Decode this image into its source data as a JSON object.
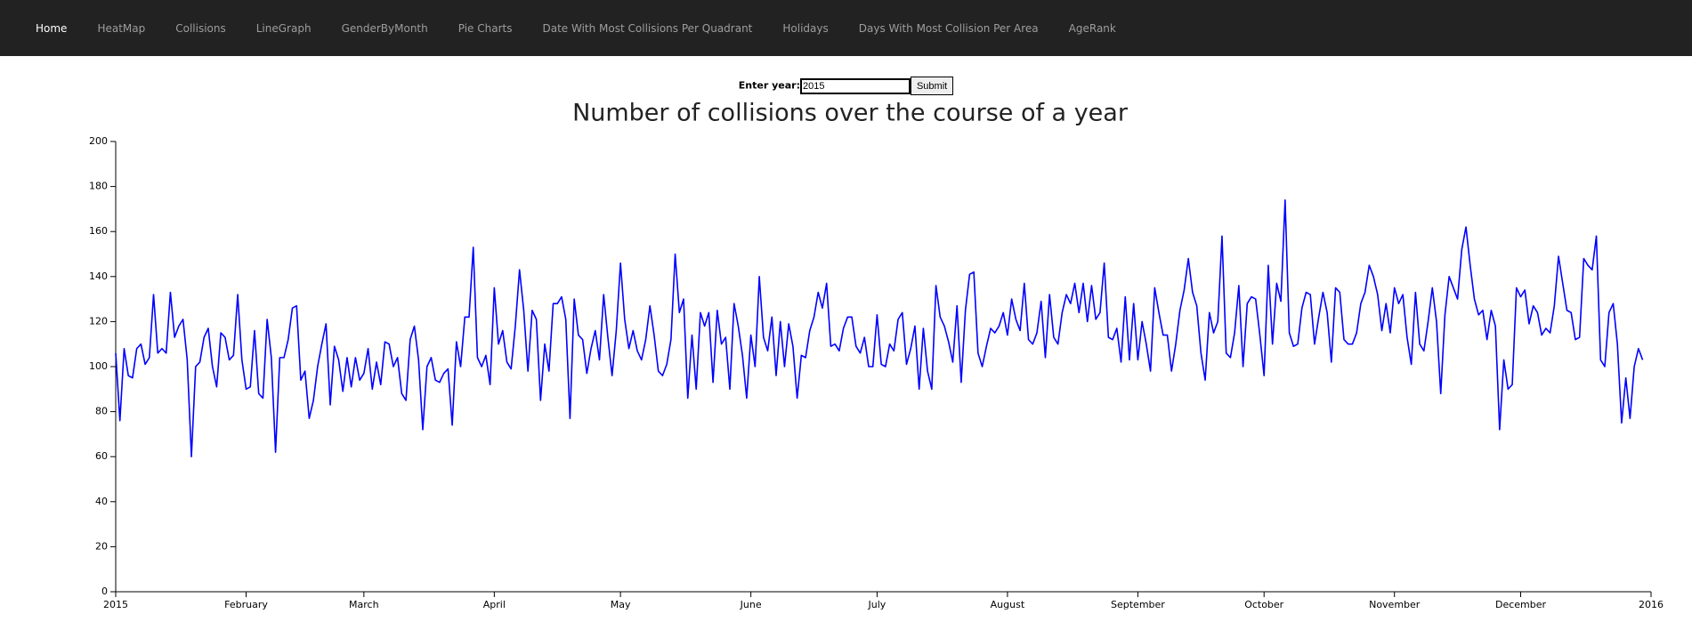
{
  "nav": {
    "items": [
      "Home",
      "HeatMap",
      "Collisions",
      "LineGraph",
      "GenderByMonth",
      "Pie Charts",
      "Date With Most Collisions Per Quadrant",
      "Holidays",
      "Days With Most Collision Per Area",
      "AgeRank"
    ]
  },
  "form": {
    "label": "Enter year:",
    "input": "2015",
    "button": "Submit"
  },
  "chart_data": {
    "type": "line",
    "title": "Number of collisions over the course of a year",
    "color": "#0000ff",
    "xlim": [
      0,
      365
    ],
    "xticks": [
      {
        "value": 0,
        "label": "2015"
      },
      {
        "value": 31,
        "label": "February"
      },
      {
        "value": 59,
        "label": "March"
      },
      {
        "value": 90,
        "label": "April"
      },
      {
        "value": 120,
        "label": "May"
      },
      {
        "value": 151,
        "label": "June"
      },
      {
        "value": 181,
        "label": "July"
      },
      {
        "value": 212,
        "label": "August"
      },
      {
        "value": 243,
        "label": "September"
      },
      {
        "value": 273,
        "label": "October"
      },
      {
        "value": 304,
        "label": "November"
      },
      {
        "value": 334,
        "label": "December"
      },
      {
        "value": 365,
        "label": "2016"
      }
    ],
    "ylim": [
      0,
      200
    ],
    "yticks": [
      0,
      20,
      40,
      60,
      80,
      100,
      120,
      140,
      160,
      180,
      200
    ],
    "x": [
      0,
      1,
      2,
      3,
      4,
      5,
      6,
      7,
      8,
      9,
      10,
      11,
      12,
      13,
      14,
      15,
      16,
      17,
      18,
      19,
      20,
      21,
      22,
      23,
      24,
      25,
      26,
      27,
      28,
      29,
      30,
      31,
      32,
      33,
      34,
      35,
      36,
      37,
      38,
      39,
      40,
      41,
      42,
      43,
      44,
      45,
      46,
      47,
      48,
      49,
      50,
      51,
      52,
      53,
      54,
      55,
      56,
      57,
      58,
      59,
      60,
      61,
      62,
      63,
      64,
      65,
      66,
      67,
      68,
      69,
      70,
      71,
      72,
      73,
      74,
      75,
      76,
      77,
      78,
      79,
      80,
      81,
      82,
      83,
      84,
      85,
      86,
      87,
      88,
      89,
      90,
      91,
      92,
      93,
      94,
      95,
      96,
      97,
      98,
      99,
      100,
      101,
      102,
      103,
      104,
      105,
      106,
      107,
      108,
      109,
      110,
      111,
      112,
      113,
      114,
      115,
      116,
      117,
      118,
      119,
      120,
      121,
      122,
      123,
      124,
      125,
      126,
      127,
      128,
      129,
      130,
      131,
      132,
      133,
      134,
      135,
      136,
      137,
      138,
      139,
      140,
      141,
      142,
      143,
      144,
      145,
      146,
      147,
      148,
      149,
      150,
      151,
      152,
      153,
      154,
      155,
      156,
      157,
      158,
      159,
      160,
      161,
      162,
      163,
      164,
      165,
      166,
      167,
      168,
      169,
      170,
      171,
      172,
      173,
      174,
      175,
      176,
      177,
      178,
      179,
      180,
      181,
      182,
      183,
      184,
      185,
      186,
      187,
      188,
      189,
      190,
      191,
      192,
      193,
      194,
      195,
      196,
      197,
      198,
      199,
      200,
      201,
      202,
      203,
      204,
      205,
      206,
      207,
      208,
      209,
      210,
      211,
      212,
      213,
      214,
      215,
      216,
      217,
      218,
      219,
      220,
      221,
      222,
      223,
      224,
      225,
      226,
      227,
      228,
      229,
      230,
      231,
      232,
      233,
      234,
      235,
      236,
      237,
      238,
      239,
      240,
      241,
      242,
      243,
      244,
      245,
      246,
      247,
      248,
      249,
      250,
      251,
      252,
      253,
      254,
      255,
      256,
      257,
      258,
      259,
      260,
      261,
      262,
      263,
      264,
      265,
      266,
      267,
      268,
      269,
      270,
      271,
      272,
      273,
      274,
      275,
      276,
      277,
      278,
      279,
      280,
      281,
      282,
      283,
      284,
      285,
      286,
      287,
      288,
      289,
      290,
      291,
      292,
      293,
      294,
      295,
      296,
      297,
      298,
      299,
      300,
      301,
      302,
      303,
      304,
      305,
      306,
      307,
      308,
      309,
      310,
      311,
      312,
      313,
      314,
      315,
      316,
      317,
      318,
      319,
      320,
      321,
      322,
      323,
      324,
      325,
      326,
      327,
      328,
      329,
      330,
      331,
      332,
      333,
      334,
      335,
      336,
      337,
      338,
      339,
      340,
      341,
      342,
      343,
      344,
      345,
      346,
      347,
      348,
      349,
      350,
      351,
      352,
      353,
      354,
      355,
      356,
      357,
      358,
      359,
      360,
      361,
      362,
      363
    ],
    "values": [
      106,
      76,
      108,
      96,
      95,
      108,
      110,
      101,
      104,
      132,
      106,
      108,
      106,
      133,
      113,
      118,
      121,
      103,
      60,
      100,
      102,
      113,
      117,
      100,
      91,
      115,
      113,
      103,
      105,
      132,
      103,
      90,
      91,
      116,
      88,
      86,
      121,
      104,
      62,
      104,
      104,
      112,
      126,
      127,
      94,
      98,
      77,
      85,
      100,
      110,
      119,
      83,
      109,
      103,
      89,
      104,
      91,
      104,
      94,
      97,
      108,
      90,
      102,
      92,
      111,
      110,
      100,
      104,
      88,
      85,
      112,
      118,
      103,
      72,
      100,
      104,
      94,
      93,
      97,
      99,
      74,
      111,
      100,
      122,
      122,
      153,
      104,
      100,
      105,
      92,
      135,
      110,
      116,
      102,
      99,
      118,
      143,
      125,
      98,
      125,
      121,
      85,
      110,
      98,
      128,
      128,
      131,
      121,
      77,
      130,
      114,
      112,
      97,
      108,
      116,
      103,
      132,
      113,
      96,
      116,
      146,
      121,
      108,
      116,
      107,
      103,
      112,
      127,
      114,
      98,
      96,
      101,
      112,
      150,
      124,
      130,
      86,
      114,
      90,
      124,
      118,
      124,
      93,
      125,
      110,
      113,
      90,
      128,
      118,
      105,
      86,
      114,
      100,
      140,
      113,
      107,
      122,
      96,
      120,
      100,
      119,
      109,
      86,
      105,
      104,
      116,
      122,
      133,
      126,
      137,
      109,
      110,
      107,
      117,
      122,
      122,
      109,
      106,
      113,
      100,
      100,
      123,
      101,
      100,
      110,
      107,
      121,
      124,
      101,
      108,
      118,
      90,
      117,
      98,
      90,
      136,
      122,
      118,
      111,
      102,
      127,
      93,
      125,
      141,
      142,
      106,
      100,
      109,
      117,
      115,
      118,
      124,
      114,
      130,
      121,
      116,
      137,
      112,
      110,
      115,
      129,
      104,
      132,
      113,
      110,
      124,
      132,
      128,
      137,
      124,
      137,
      120,
      136,
      121,
      124,
      146,
      113,
      112,
      117,
      102,
      131,
      103,
      128,
      103,
      120,
      110,
      98,
      135,
      124,
      114,
      114,
      98,
      110,
      125,
      134,
      148,
      133,
      127,
      106,
      94,
      124,
      115,
      120,
      158,
      106,
      104,
      115,
      136,
      100,
      128,
      131,
      130,
      114,
      96,
      145,
      110,
      137,
      129,
      174,
      115,
      109,
      110,
      126,
      133,
      132,
      110,
      122,
      133,
      124,
      102,
      135,
      133,
      112,
      110,
      110,
      115,
      128,
      133,
      145,
      140,
      132,
      116,
      128,
      115,
      135,
      128,
      132,
      113,
      101,
      133,
      110,
      107,
      120,
      135,
      120,
      88,
      123,
      140,
      135,
      130,
      152,
      162,
      145,
      130,
      123,
      125,
      112,
      125,
      118,
      72,
      103,
      90,
      92,
      135,
      131,
      134,
      119,
      127,
      124,
      114,
      117,
      115,
      127,
      149,
      137,
      125,
      124,
      112,
      113,
      148,
      145,
      143,
      158,
      103,
      100,
      124,
      128,
      110,
      75,
      95,
      77,
      100,
      108,
      103
    ]
  }
}
